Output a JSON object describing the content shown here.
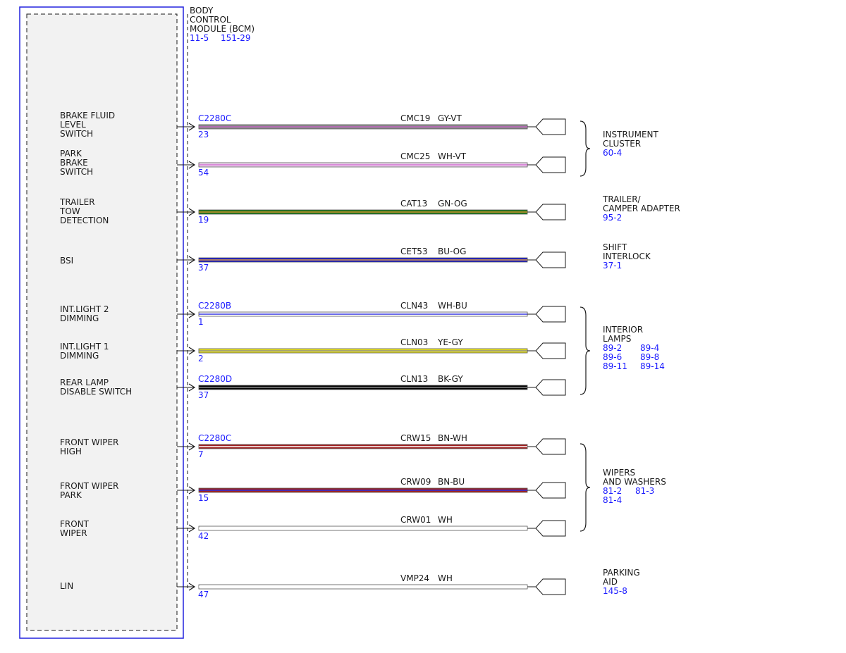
{
  "module": {
    "title_lines": [
      "BODY",
      "CONTROL",
      "MODULE (BCM)"
    ],
    "refs": [
      "11-5",
      "151-29"
    ]
  },
  "circuits": [
    {
      "pin_label": [
        "BRAKE FLUID",
        "LEVEL",
        "SWITCH"
      ],
      "connector": "C2280C",
      "pin": "23",
      "circuit": "CMC19",
      "color_code": "GY-VT",
      "color_main": "#8c8c8c",
      "color_stripe": "#c060c0"
    },
    {
      "pin_label": [
        "PARK",
        "BRAKE",
        "SWITCH"
      ],
      "connector": "",
      "pin": "54",
      "circuit": "CMC25",
      "color_code": "WH-VT",
      "color_main": "#f0d8f0",
      "color_stripe": "#d070d0"
    },
    {
      "pin_label": [
        "TRAILER",
        "TOW",
        "DETECTION"
      ],
      "connector": "",
      "pin": "19",
      "circuit": "CAT13",
      "color_code": "GN-OG",
      "color_main": "#1a7a1a",
      "color_stripe": "#d09030"
    },
    {
      "pin_label": [
        "BSI"
      ],
      "connector": "",
      "pin": "37",
      "circuit": "CET53",
      "color_code": "BU-OG",
      "color_main": "#1a1acc",
      "color_stripe": "#e0a040"
    },
    {
      "pin_label": [
        "INT.LIGHT 2",
        "DIMMING"
      ],
      "connector": "C2280B",
      "pin": "1",
      "circuit": "CLN43",
      "color_code": "WH-BU",
      "color_main": "#ffffff",
      "color_stripe": "#3a3ae0"
    },
    {
      "pin_label": [
        "INT.LIGHT 1",
        "DIMMING"
      ],
      "connector": "",
      "pin": "2",
      "circuit": "CLN03",
      "color_code": "YE-GY",
      "color_main": "#e6e020",
      "color_stripe": "#909090"
    },
    {
      "pin_label": [
        "REAR LAMP",
        "DISABLE SWITCH"
      ],
      "connector": "C2280D",
      "pin": "37",
      "circuit": "CLN13",
      "color_code": "BK-GY",
      "color_main": "#000000",
      "color_stripe": "#888888"
    },
    {
      "pin_label": [
        "FRONT WIPER",
        "HIGH"
      ],
      "connector": "C2280C",
      "pin": "7",
      "circuit": "CRW15",
      "color_code": "BN-WH",
      "color_main": "#a02020",
      "color_stripe": "#ffffff"
    },
    {
      "pin_label": [
        "FRONT WIPER",
        "PARK"
      ],
      "connector": "",
      "pin": "15",
      "circuit": "CRW09",
      "color_code": "BN-BU",
      "color_main": "#a02020",
      "color_stripe": "#2a2ae0"
    },
    {
      "pin_label": [
        "FRONT",
        "WIPER"
      ],
      "connector": "",
      "pin": "42",
      "circuit": "CRW01",
      "color_code": "WH",
      "color_main": "#ffffff",
      "color_stripe": "#ffffff"
    },
    {
      "pin_label": [
        "LIN"
      ],
      "connector": "",
      "pin": "47",
      "circuit": "VMP24",
      "color_code": "WH",
      "color_main": "#ffffff",
      "color_stripe": "#ffffff"
    }
  ],
  "destinations": [
    {
      "name_lines": [
        "INSTRUMENT",
        "CLUSTER"
      ],
      "refs": [
        [
          "60-4"
        ]
      ]
    },
    {
      "name_lines": [
        "TRAILER/",
        "CAMPER ADAPTER"
      ],
      "refs": [
        [
          "95-2"
        ]
      ]
    },
    {
      "name_lines": [
        "SHIFT",
        "INTERLOCK"
      ],
      "refs": [
        [
          "37-1"
        ]
      ]
    },
    {
      "name_lines": [
        "INTERIOR",
        "LAMPS"
      ],
      "refs": [
        [
          "89-2",
          "89-4"
        ],
        [
          "89-6",
          "89-8"
        ],
        [
          "89-11",
          "89-14"
        ]
      ]
    },
    {
      "name_lines": [
        "WIPERS",
        "AND WASHERS"
      ],
      "refs": [
        [
          "81-2",
          "81-3"
        ],
        [
          "81-4"
        ]
      ]
    },
    {
      "name_lines": [
        "PARKING",
        "AID"
      ],
      "refs": [
        [
          "145-8"
        ]
      ]
    }
  ],
  "colors": {
    "module_border": "#2222dd",
    "module_fill": "#f2f2f2",
    "ref_text": "#1a1aff",
    "text": "#1a1a1a"
  }
}
